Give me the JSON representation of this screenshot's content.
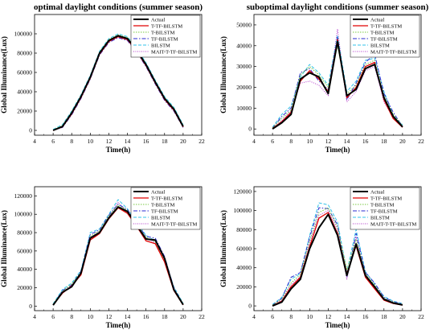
{
  "colors": {
    "Actual": "#000000",
    "T-TF-BILSTM": "#e00000",
    "T-BILSTM": "#7ac943",
    "TF-BILSTM": "#2b2bd0",
    "BILSTM": "#33c3e8",
    "MAIT-T-TF-BILSTM": "#b035c9"
  },
  "legend_labels": [
    "Actual",
    "T-TF-BILSTM",
    "T-BILSTM",
    "TF-BILSTM",
    "BILSTM",
    "MAIT-T-TF-BILSTM"
  ],
  "chart_data": [
    {
      "type": "line",
      "title": "optimal daylight conditions (summer season)",
      "xlabel": "Time(h)",
      "ylabel": "Global Illuminance(Lux)",
      "xlim": [
        4,
        22
      ],
      "ylim": [
        -5000,
        120000
      ],
      "xticks": [
        4,
        6,
        8,
        10,
        12,
        14,
        16,
        18,
        20,
        22
      ],
      "yticks": [
        0,
        20000,
        40000,
        60000,
        80000,
        100000
      ],
      "legend_position": "top-right",
      "x": [
        6,
        7,
        8,
        9,
        10,
        11,
        12,
        13,
        14,
        15,
        16,
        17,
        18,
        19,
        20
      ],
      "series": [
        {
          "name": "Actual",
          "values": [
            0,
            4000,
            18000,
            35000,
            55000,
            80000,
            93000,
            98000,
            95000,
            83000,
            68000,
            50000,
            33000,
            22000,
            4000
          ]
        },
        {
          "name": "T-TF-BILSTM",
          "values": [
            0,
            3500,
            17000,
            34000,
            54000,
            79000,
            92000,
            97000,
            94000,
            82000,
            67000,
            49000,
            32000,
            21000,
            3500
          ]
        },
        {
          "name": "T-BILSTM",
          "values": [
            500,
            5000,
            19000,
            36000,
            56000,
            81000,
            94000,
            99000,
            96000,
            84000,
            69000,
            51000,
            34000,
            23000,
            5000
          ]
        },
        {
          "name": "TF-BILSTM",
          "values": [
            0,
            3000,
            16000,
            33000,
            53000,
            78000,
            91000,
            96000,
            93000,
            81000,
            66000,
            48000,
            31000,
            20000,
            3000
          ]
        },
        {
          "name": "BILSTM",
          "values": [
            1000,
            6000,
            20000,
            37000,
            57000,
            82000,
            95000,
            100000,
            97000,
            85000,
            70000,
            52000,
            35000,
            24000,
            6000
          ]
        },
        {
          "name": "MAIT-T-TF-BILSTM",
          "values": [
            0,
            4500,
            18500,
            35500,
            55500,
            80500,
            93500,
            98500,
            95500,
            83500,
            68500,
            50500,
            33500,
            22500,
            4500
          ]
        }
      ]
    },
    {
      "type": "line",
      "title": "suboptimal daylight conditions (summer season)",
      "xlabel": "Time(h)",
      "ylabel": "Global Illuminance(Lux)",
      "xlim": [
        4,
        22
      ],
      "ylim": [
        -3000,
        55000
      ],
      "xticks": [
        4,
        6,
        8,
        10,
        12,
        14,
        16,
        18,
        20,
        22
      ],
      "yticks": [
        0,
        10000,
        20000,
        30000,
        40000,
        50000
      ],
      "legend_position": "top-right",
      "x": [
        6,
        7,
        8,
        9,
        10,
        11,
        12,
        13,
        14,
        15,
        16,
        17,
        18,
        19,
        20
      ],
      "series": [
        {
          "name": "Actual",
          "values": [
            0,
            3000,
            7000,
            24000,
            27000,
            25000,
            17000,
            42000,
            16000,
            19000,
            29000,
            31000,
            15000,
            6000,
            1000
          ]
        },
        {
          "name": "T-TF-BILSTM",
          "values": [
            200,
            3500,
            8000,
            23000,
            28000,
            24000,
            18000,
            43000,
            15000,
            20000,
            30000,
            32000,
            14000,
            5000,
            800
          ]
        },
        {
          "name": "T-BILSTM",
          "values": [
            600,
            5000,
            9000,
            26000,
            30000,
            26000,
            20000,
            40000,
            17000,
            21000,
            31000,
            33000,
            16000,
            7000,
            1500
          ]
        },
        {
          "name": "TF-BILSTM",
          "values": [
            400,
            6000,
            10000,
            27000,
            29000,
            23000,
            19000,
            44000,
            14000,
            22000,
            32000,
            36000,
            17000,
            8000,
            1200
          ]
        },
        {
          "name": "BILSTM",
          "values": [
            800,
            7000,
            11000,
            25000,
            31000,
            27000,
            21000,
            45000,
            18000,
            23000,
            33000,
            34000,
            18000,
            6500,
            2000
          ]
        },
        {
          "name": "MAIT-T-TF-BILSTM",
          "values": [
            300,
            4000,
            8500,
            22000,
            23000,
            21000,
            16000,
            48000,
            13000,
            18000,
            28000,
            30000,
            13000,
            5500,
            900
          ]
        }
      ]
    },
    {
      "type": "line",
      "title": "",
      "xlabel": "Time(h)",
      "ylabel": "Global Illuminance(Lux)",
      "xlim": [
        4,
        22
      ],
      "ylim": [
        -5000,
        130000
      ],
      "xticks": [
        4,
        6,
        8,
        10,
        12,
        14,
        16,
        18,
        20,
        22
      ],
      "yticks": [
        0,
        20000,
        40000,
        60000,
        80000,
        100000,
        120000
      ],
      "legend_position": "top-right",
      "x": [
        6,
        7,
        8,
        9,
        10,
        11,
        12,
        13,
        14,
        15,
        16,
        17,
        18,
        19,
        20
      ],
      "series": [
        {
          "name": "Actual",
          "values": [
            1000,
            15000,
            21000,
            36000,
            74000,
            80000,
            96000,
            108000,
            103000,
            88000,
            73000,
            72000,
            52000,
            18000,
            1500
          ]
        },
        {
          "name": "T-TF-BILSTM",
          "values": [
            1500,
            14000,
            22000,
            34000,
            72000,
            79000,
            95000,
            107000,
            101000,
            87000,
            71000,
            68000,
            48000,
            17000,
            1200
          ]
        },
        {
          "name": "T-BILSTM",
          "values": [
            2000,
            16000,
            24000,
            37000,
            76000,
            82000,
            98000,
            110000,
            104000,
            89000,
            75000,
            70000,
            50000,
            19000,
            2500
          ]
        },
        {
          "name": "TF-BILSTM",
          "values": [
            1200,
            17000,
            23000,
            38000,
            78000,
            83000,
            99000,
            111000,
            105000,
            90000,
            76000,
            74000,
            54000,
            20000,
            2000
          ]
        },
        {
          "name": "BILSTM",
          "values": [
            2500,
            18000,
            25000,
            39000,
            80000,
            84000,
            100000,
            116000,
            106000,
            91000,
            77000,
            71000,
            51000,
            21000,
            3000
          ]
        },
        {
          "name": "MAIT-T-TF-BILSTM",
          "values": [
            1800,
            15500,
            22500,
            35000,
            75000,
            81000,
            97000,
            113000,
            102000,
            86000,
            74000,
            69000,
            49000,
            18500,
            1800
          ]
        }
      ]
    },
    {
      "type": "line",
      "title": "",
      "xlabel": "Time(h)",
      "ylabel": "Global Illuminance(Lux)",
      "xlim": [
        4,
        22
      ],
      "ylim": [
        -5000,
        125000
      ],
      "xticks": [
        4,
        6,
        8,
        10,
        12,
        14,
        16,
        18,
        20,
        22
      ],
      "yticks": [
        0,
        20000,
        40000,
        60000,
        80000,
        100000,
        120000
      ],
      "legend_position": "top-right",
      "x": [
        6,
        7,
        8,
        9,
        10,
        11,
        12,
        13,
        14,
        15,
        16,
        17,
        18,
        19,
        20
      ],
      "series": [
        {
          "name": "Actual",
          "values": [
            0,
            4000,
            18000,
            28000,
            60000,
            82000,
            96000,
            74000,
            32000,
            65000,
            32000,
            20000,
            7000,
            3000,
            1000
          ]
        },
        {
          "name": "T-TF-BILSTM",
          "values": [
            200,
            5000,
            20000,
            30000,
            62000,
            92000,
            98000,
            76000,
            34000,
            63000,
            30000,
            18000,
            6000,
            2500,
            800
          ]
        },
        {
          "name": "T-BILSTM",
          "values": [
            1000,
            7000,
            24000,
            33000,
            68000,
            98000,
            103000,
            82000,
            38000,
            70000,
            34000,
            22000,
            8000,
            4000,
            1500
          ]
        },
        {
          "name": "TF-BILSTM",
          "values": [
            800,
            8000,
            30000,
            35000,
            72000,
            103000,
            102000,
            85000,
            30000,
            76000,
            35000,
            24000,
            9000,
            4500,
            2000
          ]
        },
        {
          "name": "BILSTM",
          "values": [
            1500,
            9000,
            28000,
            34000,
            74000,
            108000,
            106000,
            88000,
            36000,
            80000,
            36000,
            23000,
            10000,
            5000,
            2500
          ]
        },
        {
          "name": "MAIT-T-TF-BILSTM",
          "values": [
            500,
            6000,
            22000,
            31000,
            66000,
            95000,
            100000,
            80000,
            28000,
            72000,
            33000,
            21000,
            7500,
            3500,
            1200
          ]
        }
      ]
    }
  ]
}
